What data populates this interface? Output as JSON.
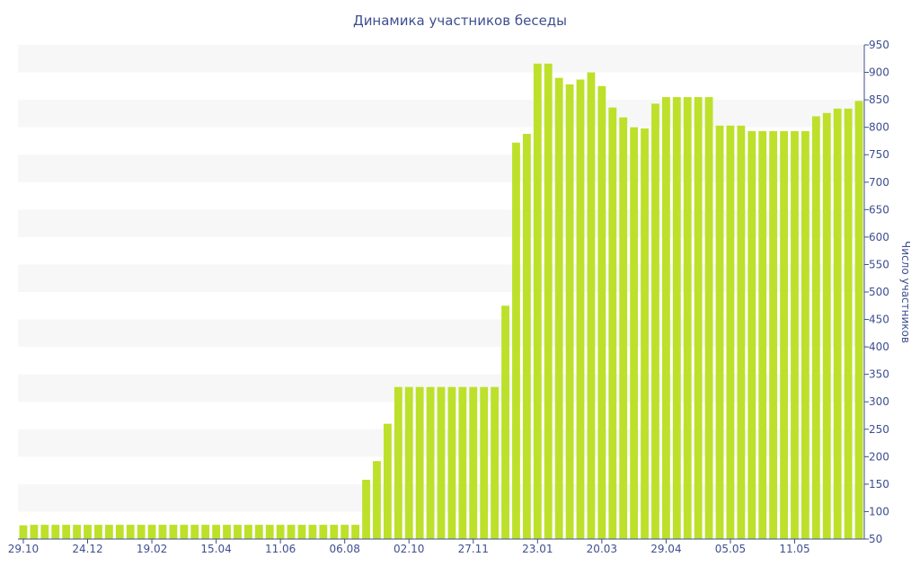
{
  "chart_data": {
    "type": "bar",
    "title": "Динамика участников беседы",
    "xlabel": "",
    "ylabel": "Число участников",
    "y_axis_position": "right",
    "ylim": [
      50,
      950
    ],
    "y_ticks": [
      50,
      100,
      150,
      200,
      250,
      300,
      350,
      400,
      450,
      500,
      550,
      600,
      650,
      700,
      750,
      800,
      850,
      900,
      950
    ],
    "x_tick_labels": [
      "29.10",
      "24.12",
      "19.02",
      "15.04",
      "11.06",
      "06.08",
      "02.10",
      "27.11",
      "23.01",
      "20.03",
      "29.04",
      "05.05",
      "11.05"
    ],
    "x_tick_bar_index": [
      0,
      6,
      12,
      18,
      24,
      30,
      36,
      42,
      48,
      54,
      60,
      66,
      72
    ],
    "values": [
      75,
      76,
      76,
      76,
      76,
      76,
      76,
      76,
      76,
      76,
      76,
      76,
      76,
      76,
      76,
      76,
      76,
      76,
      76,
      76,
      76,
      76,
      76,
      76,
      76,
      76,
      76,
      76,
      76,
      76,
      76,
      76,
      158,
      192,
      260,
      327,
      327,
      327,
      327,
      327,
      327,
      327,
      327,
      327,
      327,
      475,
      772,
      788,
      916,
      916,
      890,
      878,
      887,
      900,
      875,
      836,
      818,
      800,
      798,
      843,
      855,
      855,
      855,
      855,
      855,
      803,
      803,
      803,
      793,
      793,
      793,
      793,
      793,
      793,
      820,
      826,
      834,
      834,
      848
    ],
    "colors": {
      "bar": "#bde02b",
      "text": "#3e4f8f",
      "band": "#f7f7f7"
    },
    "grid": "horizontal bands"
  }
}
